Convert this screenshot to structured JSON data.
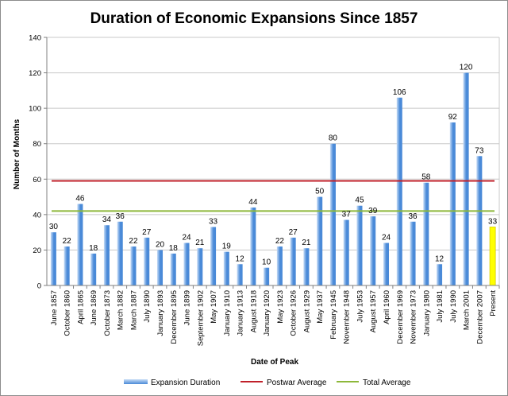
{
  "chart_data": {
    "type": "bar",
    "title": "Duration of Economic Expansions Since 1857",
    "xlabel": "Date of Peak",
    "ylabel": "Number of Months",
    "ylim": [
      0,
      140
    ],
    "ytick_step": 20,
    "grid": true,
    "legend_position": "bottom",
    "categories": [
      "June 1857",
      "October 1860",
      "April 1865",
      "June 1869",
      "October 1873",
      "March 1882",
      "March 1887",
      "July 1890",
      "January 1893",
      "December 1895",
      "June 1899",
      "September 1902",
      "May 1907",
      "January 1910",
      "January 1913",
      "August 1918",
      "January 1920",
      "May 1923",
      "October 1926",
      "August 1929",
      "May 1937",
      "February 1945",
      "November 1948",
      "July 1953",
      "August 1957",
      "April 1960",
      "December 1969",
      "November 1973",
      "January 1980",
      "July 1981",
      "July 1990",
      "March 2001",
      "December 2007",
      "Present"
    ],
    "series": [
      {
        "name": "Expansion Duration",
        "kind": "bar",
        "values": [
          30,
          22,
          46,
          18,
          34,
          36,
          22,
          27,
          20,
          18,
          24,
          21,
          33,
          19,
          12,
          44,
          10,
          22,
          27,
          21,
          50,
          80,
          37,
          45,
          39,
          24,
          106,
          36,
          58,
          12,
          92,
          120,
          73,
          33
        ]
      },
      {
        "name": "Postwar Average",
        "kind": "line",
        "value": 59
      },
      {
        "name": "Total Average",
        "kind": "line",
        "value": 42
      }
    ],
    "highlight_category": "Present",
    "colors": {
      "bar_light": "#c6dcf6",
      "bar_dark": "#4a8ad8",
      "bar_present": "#ffff00",
      "bar_present_edge": "#d8cc00",
      "postwar_line": "#c0202a",
      "total_line": "#8db83a",
      "grid": "#c8c8c8",
      "axis": "#808080"
    }
  }
}
